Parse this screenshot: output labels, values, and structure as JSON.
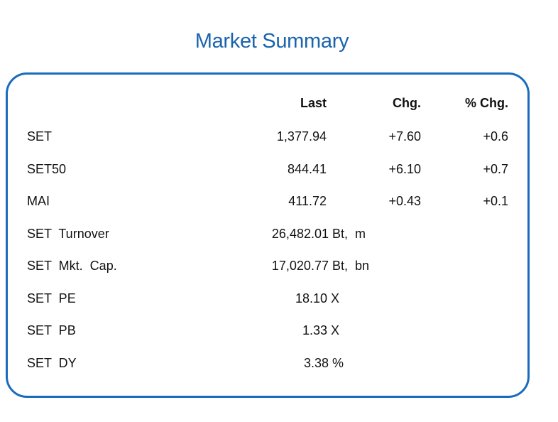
{
  "title": "Market Summary",
  "headers": {
    "last": "Last",
    "chg": "Chg.",
    "pct_chg": "% Chg."
  },
  "rows": [
    {
      "name": "SET",
      "last": "1,377.94",
      "chg": "+7.60",
      "pct_chg": "+0.6"
    },
    {
      "name": "SET50",
      "last": "844.41",
      "chg": "+6.10",
      "pct_chg": "+0.7"
    },
    {
      "name": "MAI",
      "last": "411.72",
      "chg": "+0.43",
      "pct_chg": "+0.1"
    },
    {
      "name": "SET  Turnover",
      "value": "26,482.01 Bt,  m"
    },
    {
      "name": "SET  Mkt.  Cap.",
      "value": "17,020.77 Bt,  bn"
    },
    {
      "name": "SET  PE",
      "value": "18.10 X"
    },
    {
      "name": "SET  PB",
      "value": "1.33 X"
    },
    {
      "name": "SET  DY",
      "value": "3.38 %"
    }
  ],
  "colors": {
    "title": "#1a64ad",
    "border": "#1a6bbd"
  }
}
